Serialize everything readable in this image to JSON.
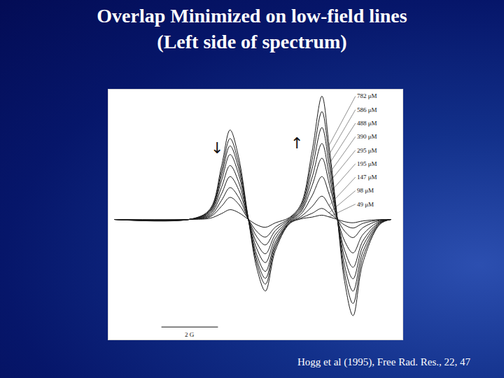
{
  "chart_data": {
    "type": "line",
    "title": "Overlap Minimized on low-field lines\n(Left side of spectrum)",
    "source": "Hogg et al (1995), Free Rad. Res., 22, 47",
    "annotations": [
      "↓",
      "↑"
    ],
    "scale_bar": {
      "length": 2,
      "label": "2 G"
    },
    "tick_labels": false,
    "grid": false,
    "color": "#1a1a1a",
    "line_style": "solid",
    "xlim": [
      -0.2,
      10.2
    ],
    "ylim": [
      -9.8,
      10.6
    ],
    "x": [
      0,
      2.8,
      3.4,
      3.8,
      4.1,
      4.4,
      4.75,
      5.05,
      5.35,
      5.7,
      6.2,
      6.6,
      7.0,
      7.35,
      7.6,
      7.9,
      8.15,
      8.45,
      8.8,
      9.4,
      9.8
    ],
    "series": [
      {
        "name": "782 μM",
        "values": [
          0,
          0.01,
          0.1,
          0.48,
          0.8,
          0.56,
          0,
          -0.44,
          -0.64,
          -0.28,
          0.16,
          1.21,
          5.53,
          10.06,
          6.04,
          0,
          -5.03,
          -7.85,
          -3.52,
          -0.4,
          0
        ]
      },
      {
        "name": "586 μM",
        "values": [
          0,
          0.02,
          0.22,
          1.08,
          1.8,
          1.26,
          0,
          -0.99,
          -1.44,
          -0.63,
          0.09,
          1.06,
          4.84,
          8.8,
          5.28,
          0,
          -4.4,
          -6.86,
          -3.08,
          -0.35,
          0
        ]
      },
      {
        "name": "488 μM",
        "values": [
          0,
          0.03,
          0.31,
          1.56,
          2.6,
          1.82,
          0,
          -1.43,
          -2.08,
          -0.91,
          0.02,
          0.9,
          4.13,
          7.5,
          4.5,
          0,
          -3.75,
          -5.85,
          -2.63,
          -0.3,
          0
        ]
      },
      {
        "name": "390 μM",
        "values": [
          0,
          0.04,
          0.42,
          2.1,
          3.5,
          2.45,
          0,
          -1.93,
          -2.8,
          -1.23,
          -0.06,
          0.74,
          3.41,
          6.2,
          3.72,
          0,
          -3.1,
          -4.84,
          -2.17,
          -0.25,
          0
        ]
      },
      {
        "name": "295 μM",
        "values": [
          0,
          0.04,
          0.53,
          2.64,
          4.4,
          3.08,
          0,
          -2.42,
          -3.52,
          -1.54,
          -0.12,
          0.6,
          2.75,
          5.0,
          3.0,
          0,
          -2.5,
          -3.9,
          -1.75,
          -0.2,
          0
        ]
      },
      {
        "name": "195 μM",
        "values": [
          0,
          0.05,
          0.64,
          3.18,
          5.3,
          3.71,
          0,
          -2.92,
          -4.24,
          -1.86,
          -0.2,
          0.42,
          1.93,
          3.5,
          2.1,
          0,
          -1.75,
          -2.73,
          -1.23,
          -0.14,
          0
        ]
      },
      {
        "name": "147 μM",
        "values": [
          0,
          0.06,
          0.72,
          3.6,
          6.0,
          4.2,
          0,
          -3.3,
          -4.8,
          -2.1,
          -0.26,
          0.23,
          1.05,
          1.9,
          1.14,
          0,
          -0.95,
          -1.48,
          -0.67,
          -0.08,
          0
        ]
      },
      {
        "name": "98 μM",
        "values": [
          0,
          0.07,
          0.79,
          3.96,
          6.6,
          4.62,
          0,
          -3.63,
          -5.28,
          -2.31,
          -0.31,
          0.11,
          0.5,
          0.9,
          0.54,
          0,
          -0.45,
          -0.7,
          -0.32,
          -0.04,
          0
        ]
      },
      {
        "name": "49 μM",
        "values": [
          0,
          0.07,
          0.88,
          4.38,
          7.3,
          5.11,
          0,
          -4.02,
          -5.84,
          -2.56,
          -0.36,
          0.04,
          0.19,
          0.35,
          0.21,
          0,
          -0.18,
          -0.27,
          -0.12,
          -0.01,
          0
        ]
      }
    ]
  }
}
